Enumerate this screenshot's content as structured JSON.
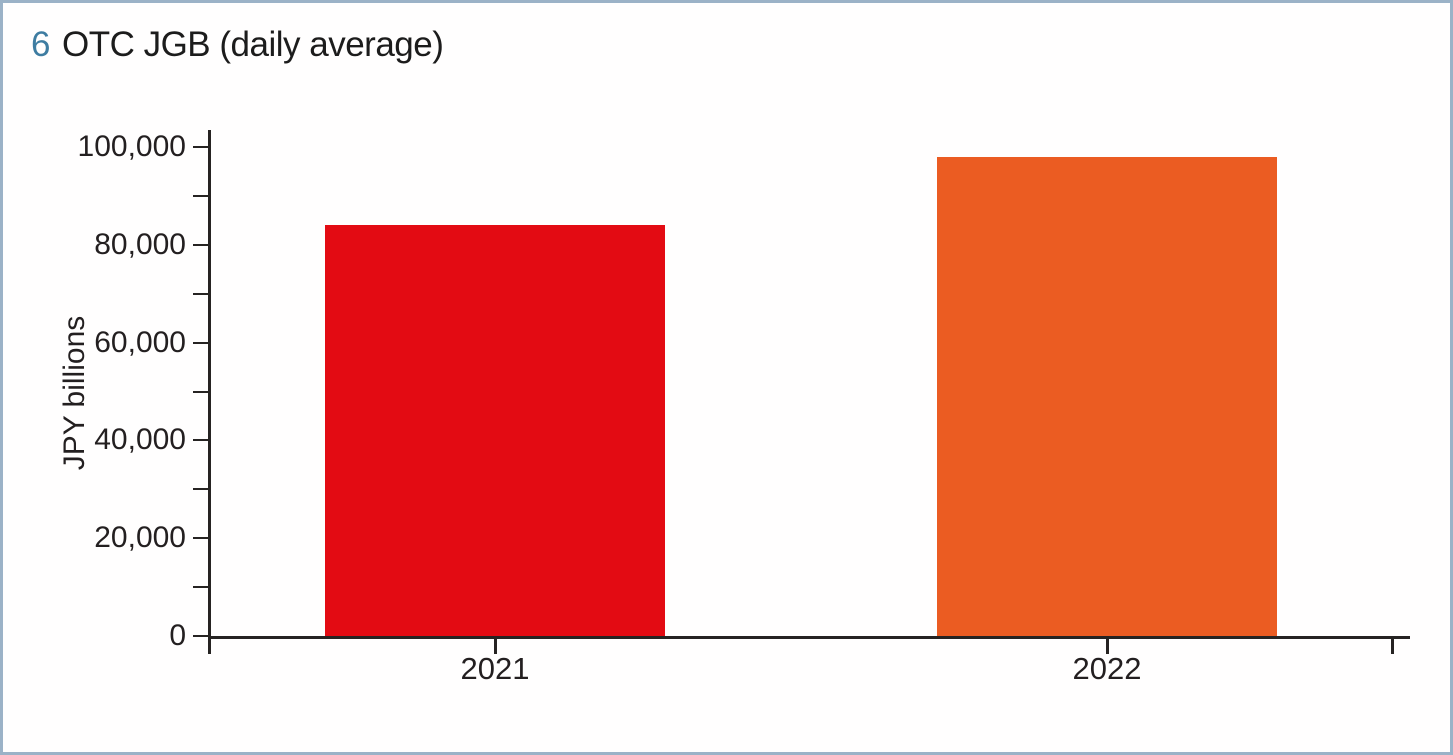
{
  "figure": {
    "number": "6",
    "title": "OTC JGB (daily average)"
  },
  "colors": {
    "figure_number": "#3e7ca1",
    "frame_border": "#9bb2c7",
    "axis": "#262322",
    "text": "#231f20"
  },
  "chart_data": {
    "type": "bar",
    "categories": [
      "2021",
      "2022"
    ],
    "values": [
      84000,
      98000
    ],
    "bar_colors": [
      "#e30b13",
      "#eb5c22"
    ],
    "title": "6 OTC JGB (daily average)",
    "xlabel": "",
    "ylabel": "JPY billions",
    "ylim": [
      0,
      100000
    ],
    "ytick_minor_interval": 10000,
    "ytick_label_interval": 20000,
    "ytick_labels": [
      "0",
      "20,000",
      "40,000",
      "60,000",
      "80,000",
      "100,000"
    ],
    "grid": false,
    "legend": "none"
  }
}
